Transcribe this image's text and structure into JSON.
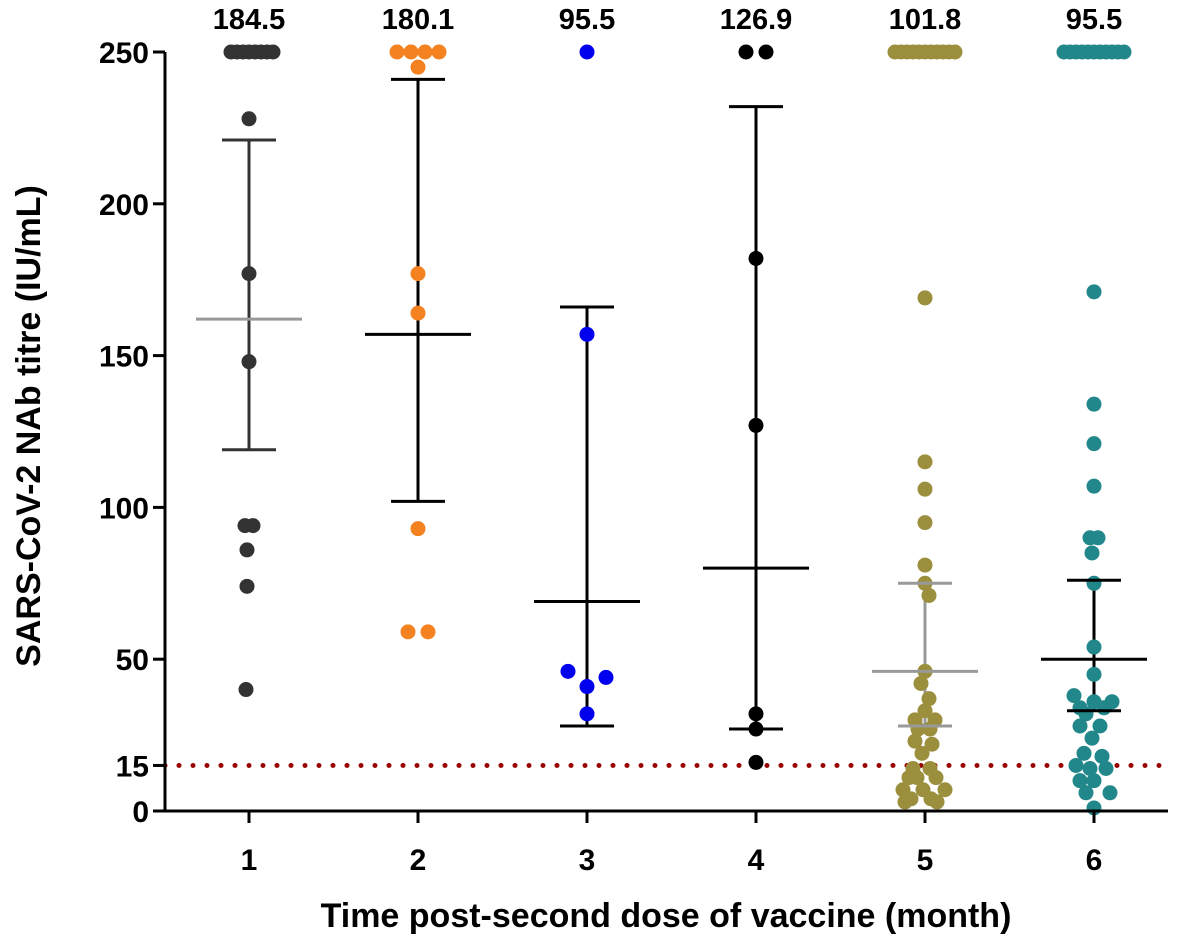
{
  "chart_data": {
    "type": "scatter",
    "title": "",
    "xlabel": "Time post-second dose of vaccine (month)",
    "ylabel": "SARS-CoV-2 NAb titre (IU/mL)",
    "ylim": [
      0,
      250
    ],
    "y_ticks": [
      {
        "value": 0,
        "label": "0"
      },
      {
        "value": 15,
        "label": "15"
      },
      {
        "value": 50,
        "label": "50"
      },
      {
        "value": 100,
        "label": "100"
      },
      {
        "value": 150,
        "label": "150"
      },
      {
        "value": 200,
        "label": "200"
      },
      {
        "value": 250,
        "label": "250"
      }
    ],
    "threshold": {
      "value": 15,
      "color": "#990000",
      "style": "dotted"
    },
    "grid": false,
    "groups": [
      {
        "category": "1",
        "top_label": "184.5",
        "color": "#333333",
        "mean_color": "#999999",
        "error_color": "#333333",
        "mean": 162,
        "error": [
          119,
          221
        ],
        "points": [
          {
            "x": -0.18,
            "y": 250
          },
          {
            "x": -0.12,
            "y": 250
          },
          {
            "x": -0.06,
            "y": 250
          },
          {
            "x": 0.0,
            "y": 250
          },
          {
            "x": 0.06,
            "y": 250
          },
          {
            "x": 0.12,
            "y": 250
          },
          {
            "x": 0.18,
            "y": 250
          },
          {
            "x": 0.24,
            "y": 250
          },
          {
            "x": 0.0,
            "y": 228
          },
          {
            "x": 0.0,
            "y": 177
          },
          {
            "x": 0.0,
            "y": 148
          },
          {
            "x": -0.04,
            "y": 94
          },
          {
            "x": 0.04,
            "y": 94
          },
          {
            "x": -0.02,
            "y": 86
          },
          {
            "x": -0.02,
            "y": 74
          },
          {
            "x": -0.03,
            "y": 40
          }
        ]
      },
      {
        "category": "2",
        "top_label": "180.1",
        "color": "#f58220",
        "mean_color": "#000000",
        "error_color": "#000000",
        "mean": 157,
        "error": [
          102,
          241
        ],
        "points": [
          {
            "x": -0.21,
            "y": 250
          },
          {
            "x": -0.07,
            "y": 250
          },
          {
            "x": 0.07,
            "y": 250
          },
          {
            "x": 0.21,
            "y": 250
          },
          {
            "x": 0.0,
            "y": 245
          },
          {
            "x": 0.0,
            "y": 177
          },
          {
            "x": 0.0,
            "y": 164
          },
          {
            "x": 0.0,
            "y": 93
          },
          {
            "x": -0.1,
            "y": 59
          },
          {
            "x": 0.1,
            "y": 59
          }
        ]
      },
      {
        "category": "3",
        "top_label": "95.5",
        "color": "#0000ee",
        "mean_color": "#000000",
        "error_color": "#000000",
        "mean": 69,
        "error": [
          28,
          166
        ],
        "points": [
          {
            "x": 0.0,
            "y": 250
          },
          {
            "x": 0.0,
            "y": 157
          },
          {
            "x": -0.19,
            "y": 46
          },
          {
            "x": 0.19,
            "y": 44
          },
          {
            "x": 0.0,
            "y": 41
          },
          {
            "x": 0.0,
            "y": 32
          }
        ]
      },
      {
        "category": "4",
        "top_label": "126.9",
        "color": "#000000",
        "mean_color": "#000000",
        "error_color": "#000000",
        "mean": 80,
        "error": [
          27,
          232
        ],
        "points": [
          {
            "x": -0.1,
            "y": 250
          },
          {
            "x": 0.1,
            "y": 250
          },
          {
            "x": 0.0,
            "y": 182
          },
          {
            "x": 0.0,
            "y": 127
          },
          {
            "x": 0.0,
            "y": 32
          },
          {
            "x": 0.0,
            "y": 27
          },
          {
            "x": 0.0,
            "y": 16
          }
        ]
      },
      {
        "category": "5",
        "top_label": "101.8",
        "color": "#9b8e3d",
        "mean_color": "#999999",
        "error_color": "#999999",
        "mean": 46,
        "error": [
          28,
          75
        ],
        "points": [
          {
            "x": -0.3,
            "y": 250
          },
          {
            "x": -0.24,
            "y": 250
          },
          {
            "x": -0.18,
            "y": 250
          },
          {
            "x": -0.12,
            "y": 250
          },
          {
            "x": -0.06,
            "y": 250
          },
          {
            "x": 0.0,
            "y": 250
          },
          {
            "x": 0.06,
            "y": 250
          },
          {
            "x": 0.12,
            "y": 250
          },
          {
            "x": 0.18,
            "y": 250
          },
          {
            "x": 0.24,
            "y": 250
          },
          {
            "x": 0.3,
            "y": 250
          },
          {
            "x": 0.0,
            "y": 169
          },
          {
            "x": 0.0,
            "y": 115
          },
          {
            "x": 0.0,
            "y": 106
          },
          {
            "x": 0.0,
            "y": 95
          },
          {
            "x": 0.0,
            "y": 81
          },
          {
            "x": 0.0,
            "y": 75
          },
          {
            "x": 0.04,
            "y": 71
          },
          {
            "x": 0.0,
            "y": 46
          },
          {
            "x": -0.04,
            "y": 42
          },
          {
            "x": 0.04,
            "y": 37
          },
          {
            "x": 0.0,
            "y": 33
          },
          {
            "x": -0.1,
            "y": 30
          },
          {
            "x": 0.1,
            "y": 30
          },
          {
            "x": -0.07,
            "y": 27
          },
          {
            "x": 0.05,
            "y": 27
          },
          {
            "x": -0.1,
            "y": 23
          },
          {
            "x": 0.07,
            "y": 22
          },
          {
            "x": -0.03,
            "y": 19
          },
          {
            "x": -0.12,
            "y": 14
          },
          {
            "x": 0.05,
            "y": 14
          },
          {
            "x": -0.16,
            "y": 11
          },
          {
            "x": -0.08,
            "y": 11
          },
          {
            "x": 0.11,
            "y": 11
          },
          {
            "x": -0.22,
            "y": 7
          },
          {
            "x": -0.02,
            "y": 7
          },
          {
            "x": 0.2,
            "y": 7
          },
          {
            "x": -0.14,
            "y": 4
          },
          {
            "x": 0.06,
            "y": 4
          },
          {
            "x": -0.2,
            "y": 3
          },
          {
            "x": 0.12,
            "y": 3
          }
        ]
      },
      {
        "category": "6",
        "top_label": "95.5",
        "color": "#22878a",
        "mean_color": "#000000",
        "error_color": "#000000",
        "mean": 50,
        "error": [
          33,
          76
        ],
        "points": [
          {
            "x": -0.3,
            "y": 250
          },
          {
            "x": -0.24,
            "y": 250
          },
          {
            "x": -0.18,
            "y": 250
          },
          {
            "x": -0.12,
            "y": 250
          },
          {
            "x": -0.06,
            "y": 250
          },
          {
            "x": 0.0,
            "y": 250
          },
          {
            "x": 0.06,
            "y": 250
          },
          {
            "x": 0.12,
            "y": 250
          },
          {
            "x": 0.18,
            "y": 250
          },
          {
            "x": 0.24,
            "y": 250
          },
          {
            "x": 0.3,
            "y": 250
          },
          {
            "x": 0.0,
            "y": 171
          },
          {
            "x": 0.0,
            "y": 134
          },
          {
            "x": 0.0,
            "y": 121
          },
          {
            "x": 0.0,
            "y": 107
          },
          {
            "x": -0.04,
            "y": 90
          },
          {
            "x": 0.04,
            "y": 90
          },
          {
            "x": -0.02,
            "y": 85
          },
          {
            "x": 0.0,
            "y": 75
          },
          {
            "x": 0.0,
            "y": 54
          },
          {
            "x": 0.0,
            "y": 45
          },
          {
            "x": -0.2,
            "y": 38
          },
          {
            "x": 0.0,
            "y": 36
          },
          {
            "x": 0.18,
            "y": 36
          },
          {
            "x": -0.14,
            "y": 34
          },
          {
            "x": 0.1,
            "y": 34
          },
          {
            "x": -0.08,
            "y": 32
          },
          {
            "x": -0.14,
            "y": 28
          },
          {
            "x": 0.06,
            "y": 28
          },
          {
            "x": -0.02,
            "y": 24
          },
          {
            "x": -0.1,
            "y": 19
          },
          {
            "x": 0.08,
            "y": 18
          },
          {
            "x": -0.18,
            "y": 15
          },
          {
            "x": -0.04,
            "y": 14
          },
          {
            "x": 0.12,
            "y": 14
          },
          {
            "x": -0.14,
            "y": 10
          },
          {
            "x": 0.0,
            "y": 10
          },
          {
            "x": -0.08,
            "y": 6
          },
          {
            "x": 0.16,
            "y": 6
          },
          {
            "x": 0.0,
            "y": 1
          }
        ]
      }
    ]
  }
}
